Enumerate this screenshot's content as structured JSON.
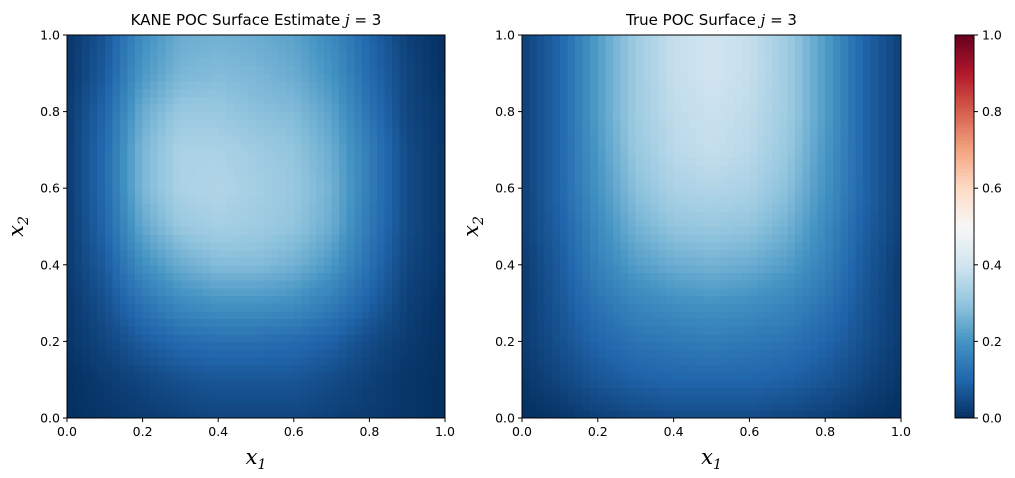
{
  "chart_data": [
    {
      "type": "heatmap",
      "title": "KANE POC Surface Estimate j = 3",
      "title_parts": {
        "text": "KANE POC Surface Estimate ",
        "var": "j",
        "eq": " = 3"
      },
      "xlabel": "x1",
      "xlabel_parts": {
        "base": "x",
        "sub": "1"
      },
      "ylabel": "x2",
      "ylabel_parts": {
        "base": "x",
        "sub": "2"
      },
      "xlim": [
        0,
        1
      ],
      "ylim": [
        0,
        1
      ],
      "xticks": [
        "0.0",
        "0.2",
        "0.4",
        "0.6",
        "0.8",
        "1.0"
      ],
      "yticks": [
        "0.0",
        "0.2",
        "0.4",
        "0.6",
        "0.8",
        "1.0"
      ],
      "x": [
        0.0,
        0.1,
        0.2,
        0.3,
        0.4,
        0.5,
        0.6,
        0.7,
        0.8,
        0.9,
        1.0
      ],
      "y": [
        0.0,
        0.1,
        0.2,
        0.3,
        0.4,
        0.5,
        0.6,
        0.7,
        0.8,
        0.9,
        1.0
      ],
      "z": [
        [
          0.0,
          0.01,
          0.02,
          0.03,
          0.04,
          0.04,
          0.04,
          0.03,
          0.02,
          0.01,
          0.0
        ],
        [
          0.0,
          0.02,
          0.04,
          0.06,
          0.07,
          0.07,
          0.07,
          0.05,
          0.03,
          0.01,
          0.0
        ],
        [
          0.01,
          0.04,
          0.08,
          0.11,
          0.12,
          0.12,
          0.11,
          0.09,
          0.05,
          0.02,
          0.0
        ],
        [
          0.01,
          0.06,
          0.13,
          0.18,
          0.2,
          0.2,
          0.19,
          0.15,
          0.09,
          0.03,
          0.0
        ],
        [
          0.02,
          0.08,
          0.19,
          0.25,
          0.28,
          0.28,
          0.26,
          0.21,
          0.12,
          0.04,
          0.01
        ],
        [
          0.02,
          0.1,
          0.24,
          0.31,
          0.33,
          0.32,
          0.3,
          0.25,
          0.14,
          0.05,
          0.01
        ],
        [
          0.02,
          0.11,
          0.27,
          0.34,
          0.35,
          0.33,
          0.31,
          0.26,
          0.15,
          0.05,
          0.01
        ],
        [
          0.02,
          0.11,
          0.27,
          0.34,
          0.34,
          0.32,
          0.3,
          0.25,
          0.15,
          0.05,
          0.01
        ],
        [
          0.02,
          0.1,
          0.25,
          0.31,
          0.31,
          0.29,
          0.28,
          0.23,
          0.13,
          0.04,
          0.01
        ],
        [
          0.01,
          0.08,
          0.21,
          0.27,
          0.28,
          0.27,
          0.25,
          0.2,
          0.11,
          0.04,
          0.0
        ],
        [
          0.01,
          0.07,
          0.19,
          0.25,
          0.26,
          0.25,
          0.23,
          0.18,
          0.1,
          0.03,
          0.0
        ]
      ],
      "cmap": "RdBu_r",
      "vmin": 0,
      "vmax": 1
    },
    {
      "type": "heatmap",
      "title": "True POC Surface j = 3",
      "title_parts": {
        "text": "True POC Surface ",
        "var": "j",
        "eq": " = 3"
      },
      "xlabel": "x1",
      "xlabel_parts": {
        "base": "x",
        "sub": "1"
      },
      "ylabel": "x2",
      "ylabel_parts": {
        "base": "x",
        "sub": "2"
      },
      "xlim": [
        0,
        1
      ],
      "ylim": [
        0,
        1
      ],
      "xticks": [
        "0.0",
        "0.2",
        "0.4",
        "0.6",
        "0.8",
        "1.0"
      ],
      "yticks": [
        "0.0",
        "0.2",
        "0.4",
        "0.6",
        "0.8",
        "1.0"
      ],
      "x": [
        0.0,
        0.1,
        0.2,
        0.3,
        0.4,
        0.5,
        0.6,
        0.7,
        0.8,
        0.9,
        1.0
      ],
      "y": [
        0.0,
        0.1,
        0.2,
        0.3,
        0.4,
        0.5,
        0.6,
        0.7,
        0.8,
        0.9,
        1.0
      ],
      "z": [
        [
          0.0,
          0.01,
          0.03,
          0.04,
          0.05,
          0.05,
          0.05,
          0.04,
          0.03,
          0.01,
          0.0
        ],
        [
          0.01,
          0.04,
          0.07,
          0.09,
          0.1,
          0.1,
          0.1,
          0.09,
          0.07,
          0.04,
          0.01
        ],
        [
          0.02,
          0.06,
          0.1,
          0.13,
          0.14,
          0.15,
          0.14,
          0.13,
          0.1,
          0.06,
          0.02
        ],
        [
          0.02,
          0.07,
          0.13,
          0.17,
          0.19,
          0.2,
          0.19,
          0.17,
          0.13,
          0.07,
          0.02
        ],
        [
          0.02,
          0.08,
          0.16,
          0.22,
          0.25,
          0.26,
          0.25,
          0.22,
          0.16,
          0.08,
          0.02
        ],
        [
          0.03,
          0.09,
          0.18,
          0.26,
          0.3,
          0.31,
          0.3,
          0.26,
          0.18,
          0.09,
          0.03
        ],
        [
          0.03,
          0.1,
          0.2,
          0.29,
          0.34,
          0.35,
          0.34,
          0.29,
          0.2,
          0.1,
          0.03
        ],
        [
          0.03,
          0.1,
          0.21,
          0.31,
          0.36,
          0.38,
          0.36,
          0.31,
          0.21,
          0.1,
          0.03
        ],
        [
          0.03,
          0.1,
          0.22,
          0.32,
          0.37,
          0.39,
          0.37,
          0.32,
          0.22,
          0.1,
          0.03
        ],
        [
          0.03,
          0.1,
          0.22,
          0.32,
          0.38,
          0.4,
          0.38,
          0.32,
          0.22,
          0.1,
          0.03
        ],
        [
          0.03,
          0.1,
          0.22,
          0.32,
          0.38,
          0.4,
          0.38,
          0.32,
          0.22,
          0.1,
          0.03
        ]
      ],
      "cmap": "RdBu_r",
      "vmin": 0,
      "vmax": 1
    }
  ],
  "colorbar": {
    "cmap": "RdBu_r",
    "range": [
      0,
      1
    ],
    "ticks": [
      "0.0",
      "0.2",
      "0.4",
      "0.6",
      "0.8",
      "1.0"
    ]
  }
}
